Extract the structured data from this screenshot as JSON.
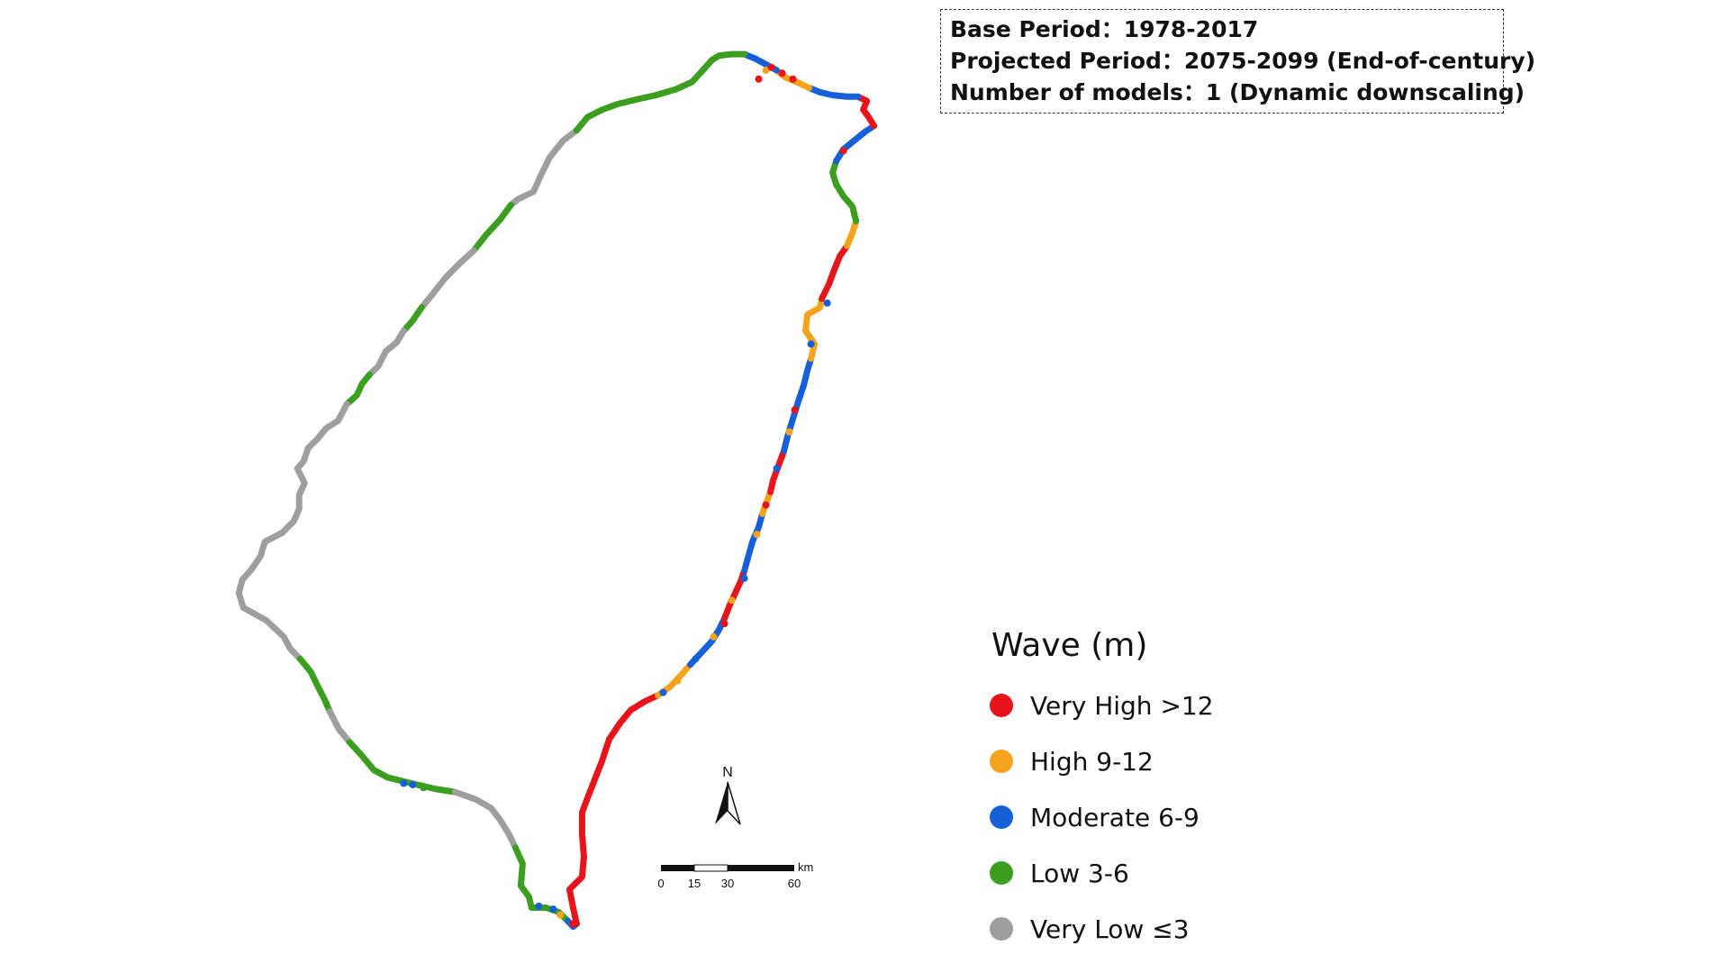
{
  "info": {
    "base_period": "Base Period：1978-2017",
    "projected_period": "Projected Period：2075-2099 (End-of-century)",
    "num_models": "Number of models：1 (Dynamic downscaling)"
  },
  "legend": {
    "title": "Wave (m)",
    "items": [
      {
        "label": "Very High >12",
        "color": "#e8141b"
      },
      {
        "label": "High 9-12",
        "color": "#f5a31c"
      },
      {
        "label": "Moderate 6-9",
        "color": "#1560d8"
      },
      {
        "label": "Low 3-6",
        "color": "#3b9e1f"
      },
      {
        "label": "Very Low ≤3",
        "color": "#9e9e9e"
      }
    ]
  },
  "north_arrow": {
    "label": "N"
  },
  "scale_bar": {
    "unit": "km",
    "labels": [
      "0",
      "15",
      "30",
      "60"
    ]
  }
}
